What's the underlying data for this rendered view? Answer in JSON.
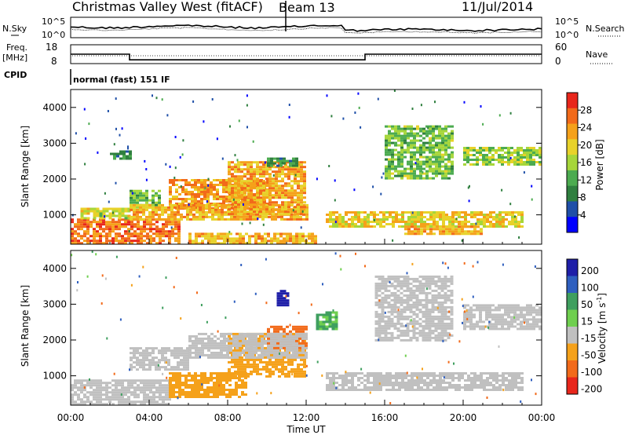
{
  "header": {
    "station": "Christmas Valley West (fitACF)",
    "beam": "Beam 13",
    "date": "11/Jul/2014"
  },
  "top_panels": {
    "nsky_label": "N.Sky",
    "nsearch_label": "N.Search",
    "noise_ticks": [
      "10^5",
      "10^0"
    ],
    "freq_label": "Freq.",
    "freq_unit": "[MHz]",
    "freq_ticks": [
      "18",
      "8"
    ],
    "nave_label": "Nave",
    "nave_ticks": [
      "60",
      "0"
    ],
    "cpid_label": "CPID",
    "cpid_text": "normal (fast) 151 IF"
  },
  "power_panel": {
    "ylabel": "Slant Range [km]",
    "yticks": [
      "1000",
      "2000",
      "3000",
      "4000"
    ],
    "cbar_label": "Power [dB]",
    "cbar_ticks": [
      "4",
      "8",
      "12",
      "16",
      "20",
      "24",
      "28"
    ],
    "cbar_colors": [
      "#0000ff",
      "#1f4fa8",
      "#2f7f3f",
      "#4cab50",
      "#a6d63a",
      "#e8d22a",
      "#f5a11a",
      "#f26a1a",
      "#e8261b"
    ]
  },
  "velocity_panel": {
    "ylabel": "Slant Range [km]",
    "yticks": [
      "1000",
      "2000",
      "3000",
      "4000"
    ],
    "cbar_label": "Velocity [m s",
    "cbar_sup": "-1",
    "cbar_ticks": [
      "200",
      "100",
      "50",
      "15",
      "-15",
      "-50",
      "-100",
      "-200"
    ],
    "cbar_colors": [
      "#1f1fa8",
      "#2f5fbf",
      "#3f9f5f",
      "#6fcf4f",
      "#c0c0c0",
      "#f5a11a",
      "#f26a1a",
      "#e8261b"
    ]
  },
  "xaxis": {
    "label": "Time UT",
    "ticks": [
      "00:00",
      "04:00",
      "08:00",
      "12:00",
      "16:00",
      "20:00",
      "00:00"
    ]
  },
  "chart_data": {
    "type": "heatmap",
    "title": "Christmas Valley West (fitACF)",
    "x_range_hours": [
      0,
      24
    ],
    "y_range_km": [
      180,
      4500
    ],
    "power_colorbar_ticks_db": [
      4,
      8,
      12,
      16,
      20,
      24,
      28
    ],
    "velocity_colorbar_ticks_ms": [
      200,
      100,
      50,
      15,
      -15,
      -50,
      -100,
      -200
    ],
    "freq_mhz": [
      {
        "start_h": 0,
        "end_h": 3,
        "value": 13
      },
      {
        "start_h": 3,
        "end_h": 15,
        "value": 10
      },
      {
        "start_h": 15,
        "end_h": 24,
        "value": 13
      }
    ],
    "power_regions": [
      {
        "t0": 0,
        "t1": 5.5,
        "r0": 200,
        "r1": 900,
        "db": 26
      },
      {
        "t0": 0.5,
        "t1": 3,
        "r0": 900,
        "r1": 1200,
        "db": 18
      },
      {
        "t0": 3,
        "t1": 4.6,
        "r0": 1200,
        "r1": 1700,
        "db": 14
      },
      {
        "t0": 5,
        "t1": 10,
        "r0": 1200,
        "r1": 2000,
        "db": 24
      },
      {
        "t0": 3,
        "t1": 12,
        "r0": 900,
        "r1": 1300,
        "db": 22
      },
      {
        "t0": 8,
        "t1": 12,
        "r0": 1000,
        "r1": 2500,
        "db": 23
      },
      {
        "t0": 6,
        "t1": 12.5,
        "r0": 200,
        "r1": 500,
        "db": 22
      },
      {
        "t0": 13,
        "t1": 23,
        "r0": 700,
        "r1": 1100,
        "db": 20
      },
      {
        "t0": 17,
        "t1": 21,
        "r0": 500,
        "r1": 700,
        "db": 22
      },
      {
        "t0": 16,
        "t1": 19.5,
        "r0": 2000,
        "r1": 3500,
        "db": 14
      },
      {
        "t0": 20,
        "t1": 24,
        "r0": 2400,
        "r1": 2900,
        "db": 16
      },
      {
        "t0": 2,
        "t1": 3,
        "r0": 2600,
        "r1": 2800,
        "db": 10
      },
      {
        "t0": 10,
        "t1": 11.5,
        "r0": 2400,
        "r1": 2600,
        "db": 10
      }
    ],
    "velocity_regions": [
      {
        "t0": 0,
        "t1": 5,
        "r0": 200,
        "r1": 900,
        "v": 0
      },
      {
        "t0": 5,
        "t1": 9,
        "r0": 400,
        "r1": 1100,
        "v": -50
      },
      {
        "t0": 8,
        "t1": 12,
        "r0": 1000,
        "r1": 2200,
        "v": -60
      },
      {
        "t0": 10,
        "t1": 12,
        "r0": 1800,
        "r1": 2400,
        "v": -120
      },
      {
        "t0": 3,
        "t1": 6,
        "r0": 1200,
        "r1": 1800,
        "v": 0
      },
      {
        "t0": 6,
        "t1": 12,
        "r0": 1500,
        "r1": 2200,
        "v": 0
      },
      {
        "t0": 13,
        "t1": 23,
        "r0": 600,
        "r1": 1100,
        "v": 0
      },
      {
        "t0": 15.5,
        "t1": 19.5,
        "r0": 2000,
        "r1": 3800,
        "v": 0
      },
      {
        "t0": 20,
        "t1": 24,
        "r0": 2300,
        "r1": 3000,
        "v": 0
      },
      {
        "t0": 10.5,
        "t1": 11,
        "r0": 3000,
        "r1": 3400,
        "v": 200
      },
      {
        "t0": 12.5,
        "t1": 13.5,
        "r0": 2300,
        "r1": 2800,
        "v": 30
      }
    ]
  }
}
